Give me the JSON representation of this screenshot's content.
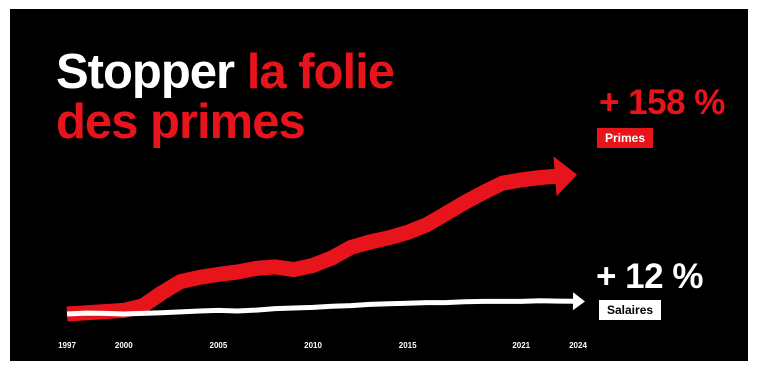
{
  "title": {
    "part1": "Stopper",
    "part2": "la folie",
    "part3": "des primes"
  },
  "colors": {
    "background": "#000000",
    "accent": "#e8141b",
    "text": "#ffffff"
  },
  "chart_data": {
    "type": "line",
    "title": "Stopper la folie des primes",
    "x_ticks": [
      "1997",
      "2000",
      "2005",
      "2010",
      "2015",
      "2021",
      "2024"
    ],
    "xlim": [
      1997,
      2024
    ],
    "grid": false,
    "series": [
      {
        "name": "Primes",
        "color": "#e8141b",
        "annotation": "+ 158 %",
        "x": [
          1997,
          1999,
          2000,
          2001,
          2002,
          2003,
          2004,
          2005,
          2006,
          2007,
          2008,
          2009,
          2010,
          2011,
          2012,
          2013,
          2014,
          2015,
          2016,
          2017,
          2018,
          2019,
          2020,
          2021,
          2022,
          2023
        ],
        "values": [
          0,
          8,
          12,
          27,
          70,
          108,
          122,
          132,
          140,
          152,
          157,
          148,
          162,
          187,
          222,
          240,
          254,
          272,
          297,
          334,
          371,
          405,
          436,
          447,
          455,
          460
        ]
      },
      {
        "name": "Salaires",
        "color": "#ffffff",
        "annotation": "+ 12 %",
        "x": [
          1997,
          1998,
          1999,
          2000,
          2001,
          2002,
          2003,
          2004,
          2005,
          2006,
          2007,
          2008,
          2009,
          2010,
          2011,
          2012,
          2013,
          2014,
          2015,
          2016,
          2017,
          2018,
          2019,
          2020,
          2021,
          2022,
          2023
        ],
        "values": [
          0,
          3,
          2,
          0,
          2,
          4,
          7,
          10,
          12,
          10,
          13,
          18,
          20,
          22,
          26,
          28,
          32,
          34,
          36,
          38,
          38,
          41,
          42,
          42,
          42,
          44,
          43
        ]
      }
    ]
  }
}
